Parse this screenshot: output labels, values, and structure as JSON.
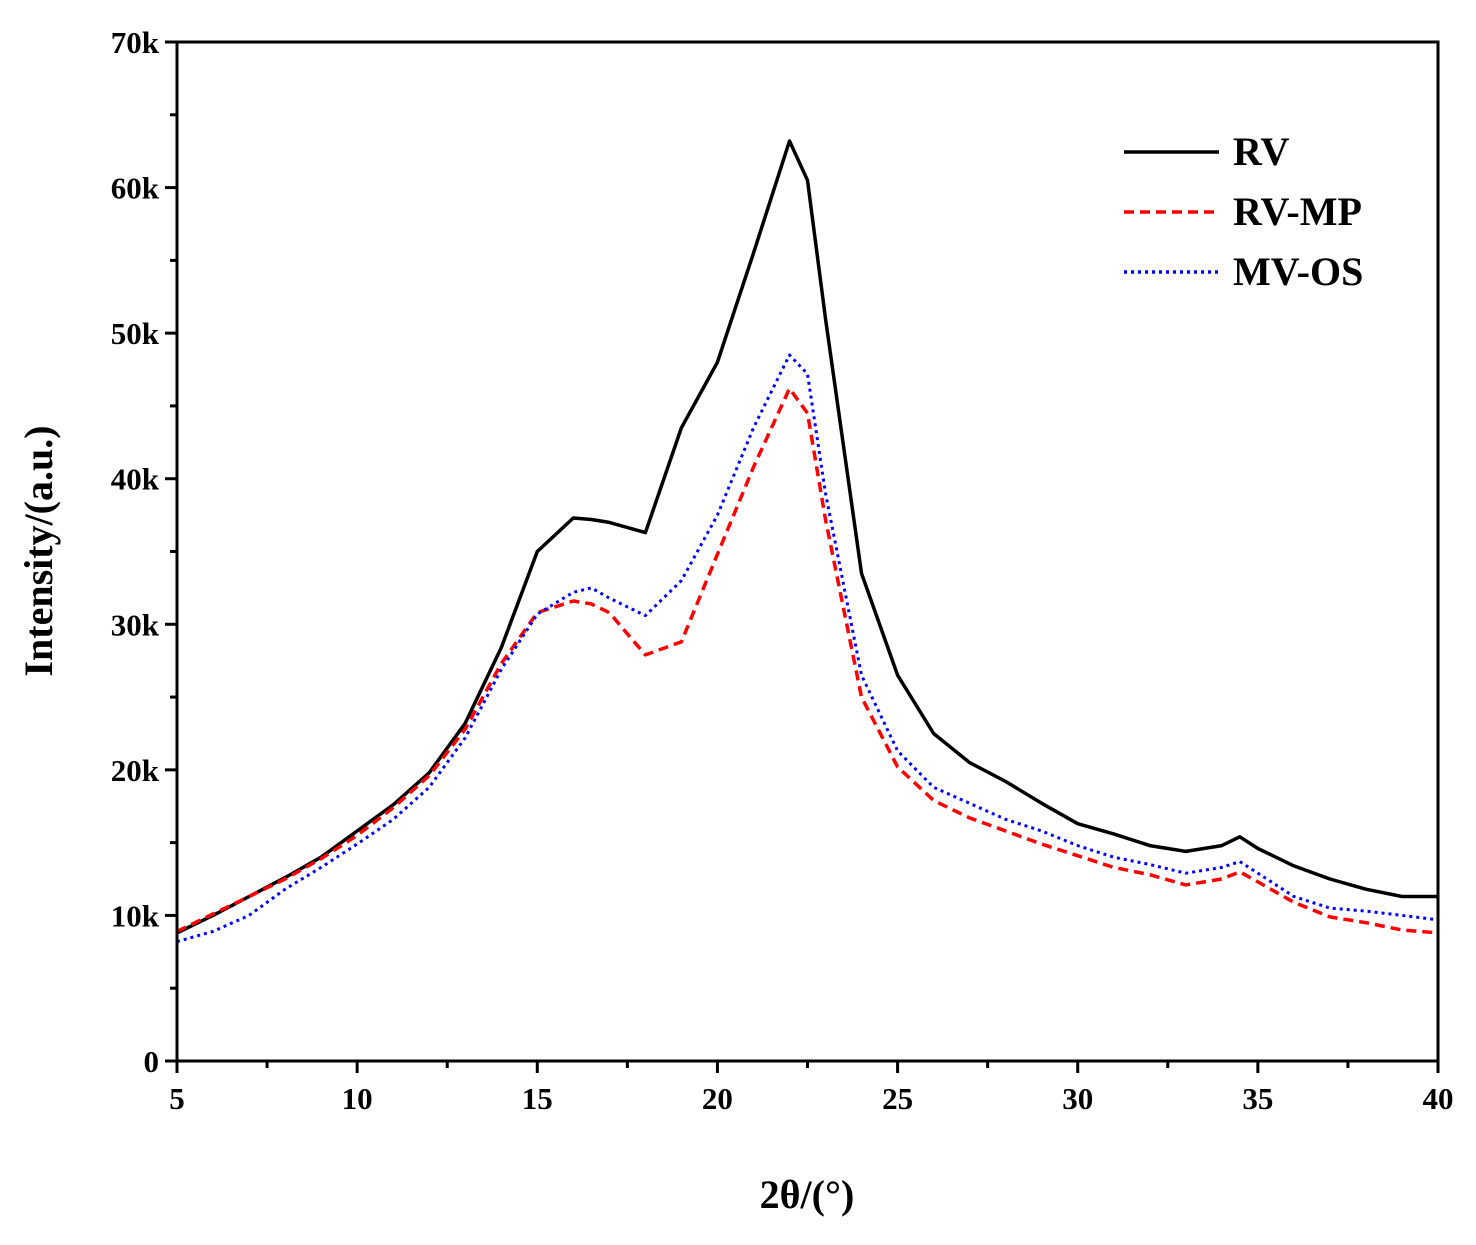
{
  "chart_data": {
    "type": "line",
    "title": "",
    "xlabel": "2θ/(°)",
    "ylabel": "Intensity/(a.u.)",
    "xlim": [
      5,
      40
    ],
    "ylim": [
      0,
      70000
    ],
    "x_ticks": [
      5,
      10,
      15,
      20,
      25,
      30,
      35,
      40
    ],
    "x_tick_labels": [
      "5",
      "10",
      "15",
      "20",
      "25",
      "30",
      "35",
      "40"
    ],
    "y_ticks": [
      0,
      10000,
      20000,
      30000,
      40000,
      50000,
      60000,
      70000
    ],
    "y_tick_labels": [
      "0",
      "10k",
      "20k",
      "30k",
      "40k",
      "50k",
      "60k",
      "70k"
    ],
    "legend_position": "top-right",
    "x": [
      5,
      6,
      7,
      8,
      9,
      10,
      11,
      12,
      13,
      14,
      15,
      16,
      16.5,
      17,
      18,
      19,
      20,
      21,
      22,
      22.5,
      23,
      24,
      25,
      26,
      27,
      28,
      29,
      30,
      31,
      32,
      33,
      34,
      34.5,
      35,
      36,
      37,
      38,
      39,
      40
    ],
    "series": [
      {
        "name": "RV",
        "color": "#000000",
        "style": "solid",
        "values": [
          8800,
          10000,
          11300,
          12600,
          14000,
          15800,
          17600,
          19800,
          23200,
          28400,
          35000,
          37300,
          37200,
          37000,
          36300,
          43500,
          48000,
          55500,
          63200,
          60500,
          51000,
          33500,
          26500,
          22500,
          20500,
          19200,
          17700,
          16300,
          15600,
          14800,
          14400,
          14800,
          15400,
          14600,
          13400,
          12500,
          11800,
          11300,
          11300
        ]
      },
      {
        "name": "RV-MP",
        "color": "#ff0000",
        "style": "dashed",
        "values": [
          8900,
          10100,
          11300,
          12500,
          13900,
          15500,
          17400,
          19600,
          22800,
          27300,
          30800,
          31600,
          31400,
          30800,
          27900,
          28800,
          34800,
          40800,
          46200,
          44500,
          37200,
          25000,
          20200,
          17900,
          16700,
          15800,
          14900,
          14100,
          13300,
          12800,
          12100,
          12500,
          13000,
          12300,
          10900,
          9900,
          9500,
          9000,
          8800
        ]
      },
      {
        "name": "MV-OS",
        "color": "#0000ff",
        "style": "dotted",
        "values": [
          8200,
          8900,
          10000,
          11800,
          13300,
          14900,
          16600,
          18800,
          22200,
          26900,
          30700,
          32200,
          32500,
          31800,
          30600,
          33000,
          37500,
          43500,
          48500,
          47200,
          39000,
          26500,
          21300,
          18800,
          17700,
          16600,
          15800,
          14800,
          14000,
          13500,
          12900,
          13300,
          13700,
          12900,
          11300,
          10500,
          10300,
          10000,
          9700
        ]
      }
    ]
  }
}
